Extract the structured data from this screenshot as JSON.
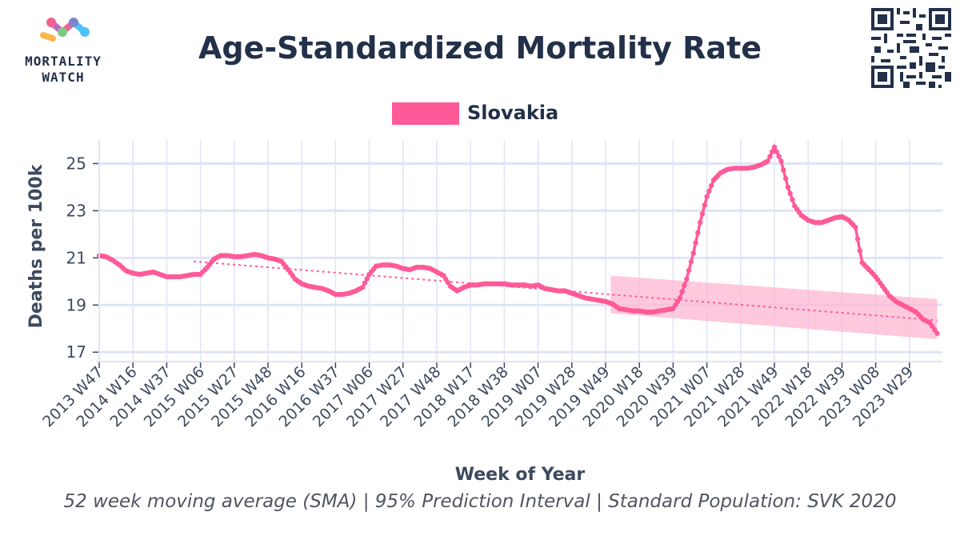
{
  "branding": {
    "logo_line1": "MORTALITY",
    "logo_line2": "WATCH",
    "logo_colors": [
      "#f06292",
      "#ffb74d",
      "#ba68c8",
      "#4fc3f7",
      "#81c784",
      "#7986cb"
    ]
  },
  "title": "Age-Standardized Mortality Rate",
  "footer": "52 week moving average (SMA) | 95% Prediction Interval | Standard Population: SVK 2020",
  "qr_icon": "qr-code-icon",
  "colors": {
    "series": "#ff5a98",
    "band": "#ffb7d1",
    "trend": "#ff5a98",
    "grid": "#dfe4f5",
    "axis": "#3e4a5e",
    "text": "#3e4a5e"
  },
  "chart_data": {
    "type": "line",
    "title": "Age-Standardized Mortality Rate",
    "xlabel": "Week of Year",
    "ylabel": "Deaths per 100k",
    "ylim": [
      16.6,
      26
    ],
    "yticks": [
      17,
      19,
      21,
      23,
      25
    ],
    "grid": true,
    "legend_position": "top-center",
    "categories": [
      "2013 W47",
      "2014 W16",
      "2014 W37",
      "2015 W06",
      "2015 W27",
      "2015 W48",
      "2016 W16",
      "2016 W37",
      "2017 W06",
      "2017 W27",
      "2017 W48",
      "2018 W17",
      "2018 W38",
      "2019 W07",
      "2019 W28",
      "2019 W49",
      "2020 W18",
      "2020 W39",
      "2021 W07",
      "2021 W28",
      "2021 W49",
      "2022 W18",
      "2022 W39",
      "2023 W08",
      "2023 W29"
    ],
    "x_last_index": 24.82,
    "series": [
      {
        "name": "Slovakia",
        "kind": "line-with-markers",
        "points": [
          [
            0.0,
            21.1
          ],
          [
            0.2,
            21.05
          ],
          [
            0.4,
            20.9
          ],
          [
            0.6,
            20.7
          ],
          [
            0.8,
            20.45
          ],
          [
            1.0,
            20.35
          ],
          [
            1.2,
            20.3
          ],
          [
            1.4,
            20.35
          ],
          [
            1.6,
            20.4
          ],
          [
            1.8,
            20.3
          ],
          [
            2.0,
            20.2
          ],
          [
            2.2,
            20.2
          ],
          [
            2.4,
            20.2
          ],
          [
            2.6,
            20.25
          ],
          [
            2.8,
            20.3
          ],
          [
            3.0,
            20.3
          ],
          [
            3.2,
            20.6
          ],
          [
            3.4,
            20.95
          ],
          [
            3.6,
            21.1
          ],
          [
            3.8,
            21.1
          ],
          [
            4.0,
            21.05
          ],
          [
            4.2,
            21.05
          ],
          [
            4.4,
            21.1
          ],
          [
            4.6,
            21.15
          ],
          [
            4.8,
            21.1
          ],
          [
            5.0,
            21.0
          ],
          [
            5.2,
            20.95
          ],
          [
            5.4,
            20.85
          ],
          [
            5.6,
            20.5
          ],
          [
            5.8,
            20.1
          ],
          [
            6.0,
            19.9
          ],
          [
            6.2,
            19.8
          ],
          [
            6.4,
            19.75
          ],
          [
            6.6,
            19.7
          ],
          [
            6.8,
            19.6
          ],
          [
            7.0,
            19.45
          ],
          [
            7.2,
            19.45
          ],
          [
            7.4,
            19.5
          ],
          [
            7.6,
            19.6
          ],
          [
            7.8,
            19.75
          ],
          [
            8.0,
            20.3
          ],
          [
            8.2,
            20.65
          ],
          [
            8.4,
            20.7
          ],
          [
            8.6,
            20.7
          ],
          [
            8.8,
            20.65
          ],
          [
            9.0,
            20.55
          ],
          [
            9.2,
            20.5
          ],
          [
            9.4,
            20.6
          ],
          [
            9.6,
            20.6
          ],
          [
            9.8,
            20.55
          ],
          [
            10.0,
            20.4
          ],
          [
            10.2,
            20.25
          ],
          [
            10.4,
            19.8
          ],
          [
            10.6,
            19.6
          ],
          [
            10.8,
            19.75
          ],
          [
            11.0,
            19.85
          ],
          [
            11.2,
            19.85
          ],
          [
            11.4,
            19.9
          ],
          [
            11.6,
            19.9
          ],
          [
            11.8,
            19.9
          ],
          [
            12.0,
            19.9
          ],
          [
            12.2,
            19.85
          ],
          [
            12.4,
            19.85
          ],
          [
            12.6,
            19.85
          ],
          [
            12.8,
            19.8
          ],
          [
            13.0,
            19.85
          ],
          [
            13.2,
            19.7
          ],
          [
            13.4,
            19.65
          ],
          [
            13.6,
            19.6
          ],
          [
            13.8,
            19.6
          ],
          [
            14.0,
            19.5
          ],
          [
            14.2,
            19.4
          ],
          [
            14.4,
            19.3
          ],
          [
            14.6,
            19.25
          ],
          [
            14.8,
            19.2
          ],
          [
            15.0,
            19.15
          ],
          [
            15.2,
            19.05
          ],
          [
            15.4,
            18.85
          ],
          [
            15.6,
            18.8
          ],
          [
            15.8,
            18.75
          ],
          [
            16.0,
            18.75
          ],
          [
            16.2,
            18.7
          ],
          [
            16.4,
            18.7
          ],
          [
            16.6,
            18.75
          ],
          [
            16.8,
            18.8
          ],
          [
            17.0,
            18.85
          ],
          [
            17.2,
            19.3
          ],
          [
            17.4,
            20.1
          ],
          [
            17.6,
            21.2
          ],
          [
            17.8,
            22.5
          ],
          [
            18.0,
            23.6
          ],
          [
            18.2,
            24.3
          ],
          [
            18.4,
            24.6
          ],
          [
            18.6,
            24.75
          ],
          [
            18.8,
            24.8
          ],
          [
            19.0,
            24.8
          ],
          [
            19.2,
            24.8
          ],
          [
            19.4,
            24.85
          ],
          [
            19.6,
            24.95
          ],
          [
            19.8,
            25.1
          ],
          [
            20.0,
            25.7
          ],
          [
            20.2,
            25.1
          ],
          [
            20.4,
            24.0
          ],
          [
            20.6,
            23.2
          ],
          [
            20.8,
            22.8
          ],
          [
            21.0,
            22.6
          ],
          [
            21.2,
            22.5
          ],
          [
            21.4,
            22.5
          ],
          [
            21.6,
            22.6
          ],
          [
            21.8,
            22.7
          ],
          [
            22.0,
            22.75
          ],
          [
            22.2,
            22.6
          ],
          [
            22.4,
            22.3
          ],
          [
            22.6,
            20.8
          ],
          [
            22.8,
            20.5
          ],
          [
            23.0,
            20.2
          ],
          [
            23.2,
            19.8
          ],
          [
            23.4,
            19.4
          ],
          [
            23.6,
            19.15
          ],
          [
            23.8,
            19.0
          ],
          [
            24.0,
            18.85
          ],
          [
            24.2,
            18.7
          ],
          [
            24.4,
            18.4
          ],
          [
            24.6,
            18.25
          ],
          [
            24.82,
            17.8
          ]
        ]
      },
      {
        "kind": "trend",
        "points": [
          [
            2.8,
            20.85
          ],
          [
            24.82,
            18.35
          ]
        ]
      },
      {
        "kind": "prediction-interval",
        "x_range": [
          15.15,
          24.82
        ],
        "upper": [
          20.25,
          19.25
        ],
        "lower": [
          18.65,
          17.55
        ]
      }
    ]
  }
}
